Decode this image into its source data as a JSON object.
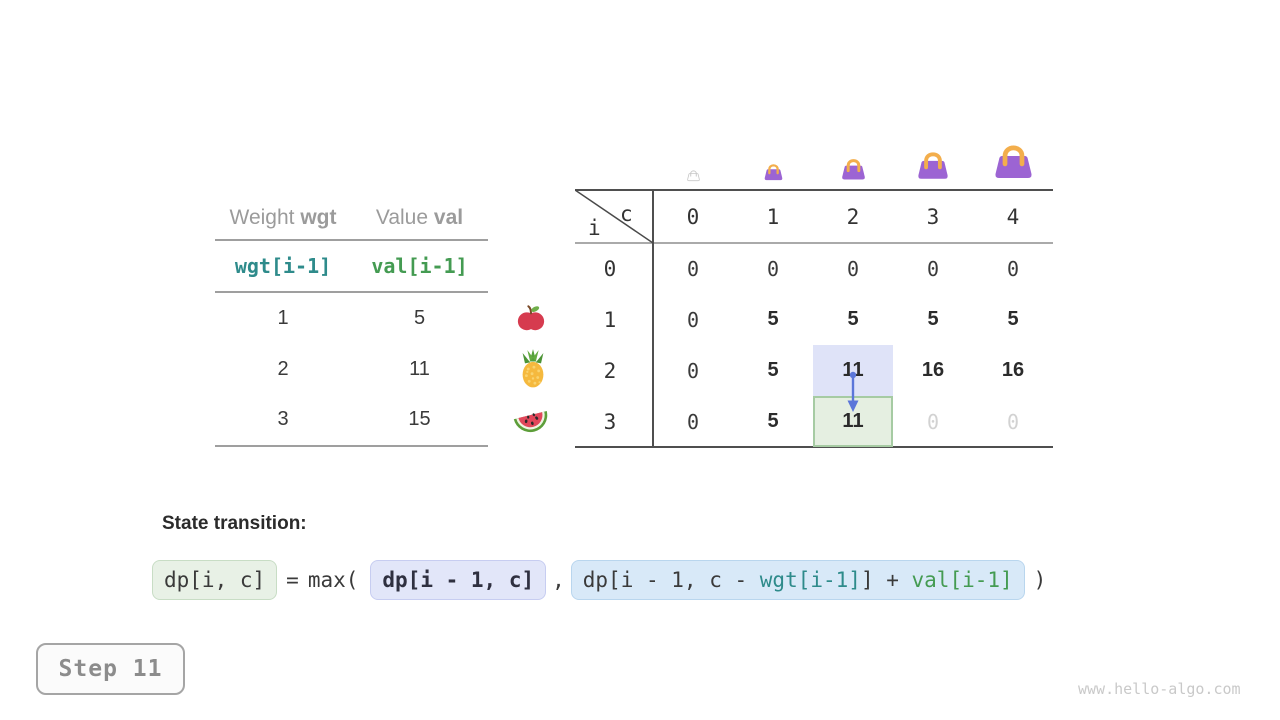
{
  "page": {
    "watermark": "www.hello-algo.com"
  },
  "step_badge": {
    "label": "Step 11"
  },
  "items_table": {
    "col1_header": {
      "plain": "Weight",
      "code": "wgt"
    },
    "col2_header": {
      "plain": "Value",
      "code": "val"
    },
    "code_row": {
      "wgt": "wgt[i-1]",
      "val": "val[i-1]"
    },
    "rows": [
      {
        "wgt": "1",
        "val": "5"
      },
      {
        "wgt": "2",
        "val": "11"
      },
      {
        "wgt": "3",
        "val": "15"
      }
    ],
    "item_icons": [
      "apple-icon",
      "pineapple-icon",
      "watermelon-icon"
    ]
  },
  "dp_table": {
    "corner": {
      "col_var": "c",
      "row_var": "i"
    },
    "col_headers": [
      "0",
      "1",
      "2",
      "3",
      "4"
    ],
    "row_headers": [
      "0",
      "1",
      "2",
      "3"
    ],
    "bag_icons": [
      {
        "capacity": "0",
        "icon": "empty-bag-icon"
      },
      {
        "capacity": "1",
        "icon": "bag-icon"
      },
      {
        "capacity": "2",
        "icon": "bag-icon"
      },
      {
        "capacity": "3",
        "icon": "bag-icon"
      },
      {
        "capacity": "4",
        "icon": "bag-icon"
      }
    ],
    "cells": [
      [
        {
          "t": "0",
          "k": "zero"
        },
        {
          "t": "0",
          "k": "zero"
        },
        {
          "t": "0",
          "k": "zero"
        },
        {
          "t": "0",
          "k": "zero"
        },
        {
          "t": "0",
          "k": "zero"
        }
      ],
      [
        {
          "t": "0",
          "k": "zero"
        },
        {
          "t": "5",
          "k": "val"
        },
        {
          "t": "5",
          "k": "val"
        },
        {
          "t": "5",
          "k": "val"
        },
        {
          "t": "5",
          "k": "val"
        }
      ],
      [
        {
          "t": "0",
          "k": "zero"
        },
        {
          "t": "5",
          "k": "val"
        },
        {
          "t": "11",
          "k": "val"
        },
        {
          "t": "16",
          "k": "val"
        },
        {
          "t": "16",
          "k": "val"
        }
      ],
      [
        {
          "t": "0",
          "k": "zero"
        },
        {
          "t": "5",
          "k": "val"
        },
        {
          "t": "11",
          "k": "val"
        },
        {
          "t": "0",
          "k": "ghost"
        },
        {
          "t": "0",
          "k": "ghost"
        }
      ]
    ],
    "highlights": {
      "source": {
        "row": 2,
        "col": 2,
        "value": "11",
        "color": "#dfe3f8"
      },
      "target": {
        "row": 3,
        "col": 2,
        "value": "11",
        "color": "#e5efe1",
        "border": "#a6cba3"
      },
      "arrow_color": "#5b76d9"
    }
  },
  "transition": {
    "label": "State transition:",
    "lhs": "dp[i, c]",
    "eq": "=",
    "max_open": "max(",
    "arg1": "dp[i - 1, c]",
    "comma": ",",
    "arg2_parts": {
      "pre": "dp[i - 1, c - ",
      "wgt": "wgt[i-1]",
      "mid": "] + ",
      "val": "val[i-1]"
    },
    "close_paren": ")"
  },
  "colors": {
    "code_teal": "#2e8b8b",
    "code_green": "#449b52",
    "bag_body": "#9c64d3",
    "bag_handle": "#f3ae4c",
    "empty_bag": "#c8c8c8"
  }
}
